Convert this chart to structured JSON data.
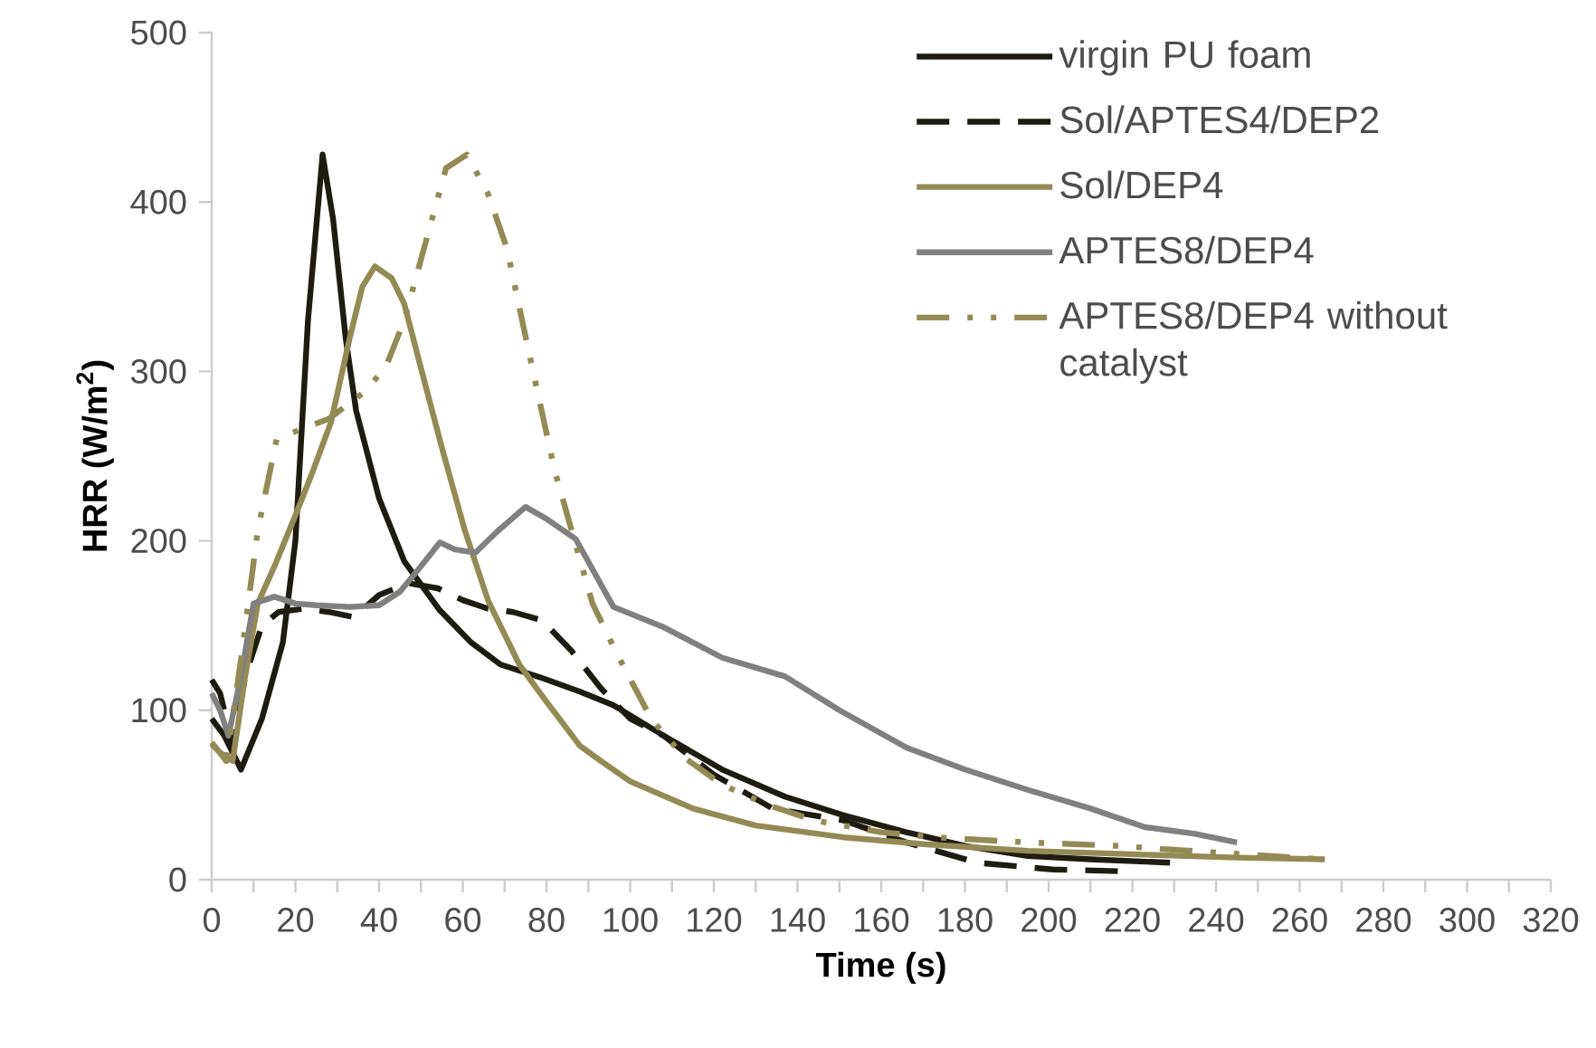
{
  "chart_data": {
    "type": "line",
    "xlabel": "Time (s)",
    "ylabel": "HRR (W/m$^{2}$)",
    "xlim": [
      0,
      320
    ],
    "ylim": [
      0,
      500
    ],
    "xticks": [
      0,
      {
        "value": 10,
        "label": null
      },
      20,
      {
        "value": 30,
        "label": null
      },
      40,
      {
        "value": 50,
        "label": null
      },
      60,
      {
        "value": 70,
        "label": null
      },
      80,
      {
        "value": 90,
        "label": null
      },
      100,
      {
        "value": 110,
        "label": null
      },
      120,
      {
        "value": 130,
        "label": null
      },
      140,
      {
        "value": 150,
        "label": null
      },
      160,
      {
        "value": 170,
        "label": null
      },
      180,
      {
        "value": 190,
        "label": null
      },
      200,
      {
        "value": 210,
        "label": null
      },
      220,
      {
        "value": 230,
        "label": null
      },
      240,
      {
        "value": 250,
        "label": null
      },
      260,
      {
        "value": 270,
        "label": null
      },
      280,
      {
        "value": 290,
        "label": null
      },
      300,
      {
        "value": 310,
        "label": null
      },
      320
    ],
    "yticks": [
      0,
      100,
      200,
      300,
      400,
      500
    ],
    "legend": "top right",
    "series": [
      {
        "name": "virgin PU foam",
        "color": "#1e1c10",
        "line_style": "solid",
        "x": [
          0,
          3,
          7,
          12,
          17,
          20,
          23,
          26.5,
          29,
          32,
          34.5,
          40,
          46,
          54.5,
          62,
          69,
          79,
          88,
          96,
          108,
          122,
          137,
          151,
          166,
          180,
          195,
          210,
          229
        ],
        "values": [
          95,
          85,
          65,
          95,
          140,
          200,
          330,
          428,
          390,
          320,
          277,
          225,
          188,
          159,
          140,
          127,
          119,
          111,
          103,
          85,
          65,
          49,
          38,
          28,
          20,
          14,
          12,
          10
        ]
      },
      {
        "name": "Sol/APTES4/DEP2",
        "color": "#1e1c10",
        "line_style": "dashed",
        "x": [
          0,
          2,
          5,
          8,
          12,
          16,
          22,
          28,
          34,
          40,
          47,
          54,
          60,
          66,
          72,
          79,
          86,
          93,
          100,
          108,
          120,
          134,
          151,
          166,
          183,
          201,
          217
        ],
        "values": [
          118,
          110,
          80,
          120,
          150,
          158,
          160,
          158,
          155,
          168,
          175,
          172,
          165,
          160,
          158,
          153,
          135,
          113,
          95,
          85,
          62,
          42,
          35,
          22,
          10,
          6,
          5
        ]
      },
      {
        "name": "Sol/DEP4",
        "color": "#948a54",
        "line_style": "solid",
        "x": [
          0,
          2,
          5,
          8,
          11,
          15,
          20,
          24,
          28.5,
          33,
          36,
          39,
          43,
          46,
          50,
          55,
          60.5,
          66,
          73.5,
          80,
          88,
          93,
          100,
          115,
          130,
          151,
          170,
          195,
          220,
          245,
          266
        ],
        "values": [
          80,
          75,
          70,
          120,
          163,
          185,
          215,
          240,
          270,
          320,
          350,
          362,
          355,
          340,
          302,
          255,
          206,
          165,
          127,
          105,
          79,
          70,
          58,
          42,
          32,
          25,
          21,
          17,
          15,
          13,
          12
        ]
      },
      {
        "name": "APTES8/DEP4",
        "color": "#808080",
        "line_style": "solid",
        "x": [
          0,
          2,
          4,
          7,
          10,
          15,
          20,
          25,
          33,
          40,
          45,
          50,
          54.5,
          58,
          63,
          68,
          75,
          80,
          87,
          96,
          108,
          122,
          137,
          150,
          166,
          180,
          195,
          210,
          223,
          235,
          245
        ],
        "values": [
          110,
          100,
          85,
          120,
          163,
          167,
          163,
          162,
          161,
          162,
          170,
          185,
          199,
          195,
          193,
          205,
          220,
          213,
          201,
          161,
          149,
          131,
          120,
          100,
          78,
          65,
          53,
          42,
          31,
          27,
          22
        ]
      },
      {
        "name": "APTES8/DEP4  without catalyst",
        "color": "#948a54",
        "line_style": "dashdot",
        "x": [
          0,
          3.5,
          7,
          11,
          15.5,
          21.5,
          28,
          36,
          41.5,
          46,
          50,
          56,
          61,
          66,
          70.5,
          76,
          82,
          91,
          96.5,
          105,
          113,
          122,
          133,
          144,
          160,
          173,
          195,
          216,
          240,
          266
        ],
        "values": [
          81,
          70,
          130,
          206,
          260,
          266,
          272,
          287,
          302,
          330,
          366,
          420,
          428,
          405,
          373,
          309,
          241,
          163,
          135,
          95,
          72,
          56,
          44,
          35,
          28,
          25,
          22,
          20,
          16,
          12
        ]
      }
    ]
  }
}
